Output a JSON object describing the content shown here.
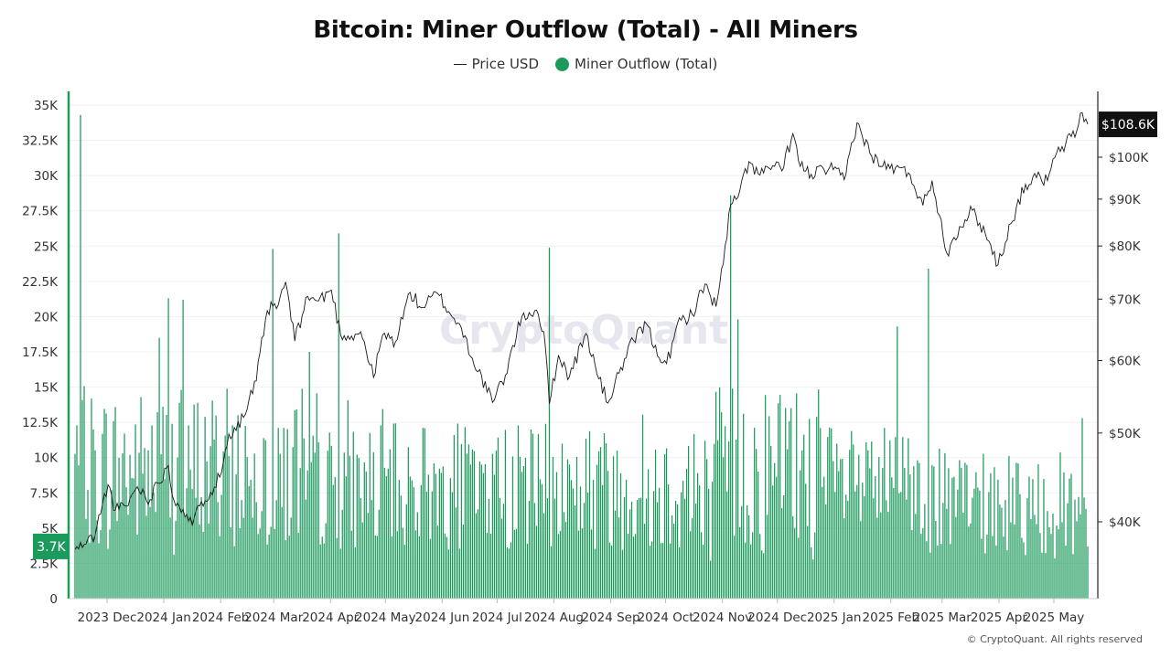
{
  "title": "Bitcoin: Miner Outflow (Total) - All Miners",
  "legend": {
    "price_label": "Price USD",
    "outflow_label": "Miner Outflow (Total)"
  },
  "watermark": "CryptoQuant",
  "footer": "© CryptoQuant. All rights reserved",
  "colors": {
    "outflow": "#1b9a5c",
    "price": "#1a1a1a",
    "badge_price_bg": "#111111",
    "badge_outflow_bg": "#1b9a5c"
  },
  "chart_data": {
    "type": "bar",
    "x_tick_labels": [
      "2023 Dec",
      "2024 Jan",
      "2024 Feb",
      "2024 Mar",
      "2024 Apr",
      "2024 May",
      "2024 Jun",
      "2024 Jul",
      "2024 Aug",
      "2024 Sep",
      "2024 Oct",
      "2024 Nov",
      "2024 Dec",
      "2025 Jan",
      "2025 Feb",
      "2025 Mar",
      "2025 Apr",
      "2025 May"
    ],
    "left_axis": {
      "label": "",
      "ylim": [
        0,
        35000
      ],
      "tick_values": [
        0,
        2500,
        5000,
        7500,
        10000,
        12500,
        15000,
        17500,
        20000,
        22500,
        25000,
        27500,
        30000,
        32500,
        35000
      ],
      "tick_labels": [
        "0",
        "2.5K",
        "5K",
        "7.5K",
        "10K",
        "12.5K",
        "15K",
        "17.5K",
        "20K",
        "22.5K",
        "25K",
        "27.5K",
        "30K",
        "32.5K",
        "35K"
      ]
    },
    "right_axis": {
      "scale": "log",
      "ylim": [
        33000,
        120000
      ],
      "tick_values": [
        40000,
        50000,
        60000,
        70000,
        80000,
        90000,
        100000
      ],
      "tick_labels": [
        "$40K",
        "$50K",
        "$60K",
        "$70K",
        "$80K",
        "$90K",
        "$100K"
      ]
    },
    "series": [
      {
        "name": "Miner Outflow (Total)",
        "kind": "bar",
        "axis": "left",
        "start_date": "2023-11-20",
        "interval": "daily",
        "spikes": [
          {
            "date": "2023-11-23",
            "value": 34300
          },
          {
            "date": "2024-01-10",
            "value": 21300
          },
          {
            "date": "2024-01-18",
            "value": 21200
          },
          {
            "date": "2024-01-05",
            "value": 18500
          },
          {
            "date": "2024-03-07",
            "value": 24800
          },
          {
            "date": "2024-04-12",
            "value": 25900
          },
          {
            "date": "2024-08-05",
            "value": 24900
          },
          {
            "date": "2024-11-12",
            "value": 28600
          },
          {
            "date": "2024-11-16",
            "value": 19800
          },
          {
            "date": "2025-02-28",
            "value": 23400
          },
          {
            "date": "2025-02-11",
            "value": 19300
          },
          {
            "date": "2025-05-23",
            "value": 12800
          }
        ],
        "last_value": 3700,
        "last_label": "3.7K"
      },
      {
        "name": "Price USD",
        "kind": "line",
        "axis": "right",
        "points": [
          [
            "2023-11-20",
            37300
          ],
          [
            "2023-11-25",
            37800
          ],
          [
            "2023-12-01",
            38700
          ],
          [
            "2023-12-05",
            41800
          ],
          [
            "2023-12-08",
            43900
          ],
          [
            "2023-12-12",
            41200
          ],
          [
            "2023-12-18",
            41600
          ],
          [
            "2023-12-24",
            43700
          ],
          [
            "2023-12-31",
            42300
          ],
          [
            "2024-01-04",
            44100
          ],
          [
            "2024-01-10",
            46100
          ],
          [
            "2024-01-12",
            42800
          ],
          [
            "2024-01-18",
            41300
          ],
          [
            "2024-01-23",
            39600
          ],
          [
            "2024-01-28",
            42100
          ],
          [
            "2024-02-02",
            43100
          ],
          [
            "2024-02-08",
            45300
          ],
          [
            "2024-02-12",
            49900
          ],
          [
            "2024-02-20",
            52000
          ],
          [
            "2024-02-27",
            57000
          ],
          [
            "2024-03-04",
            68000
          ],
          [
            "2024-03-10",
            69000
          ],
          [
            "2024-03-14",
            73100
          ],
          [
            "2024-03-19",
            63000
          ],
          [
            "2024-03-26",
            70500
          ],
          [
            "2024-04-01",
            69700
          ],
          [
            "2024-04-08",
            71600
          ],
          [
            "2024-04-13",
            64000
          ],
          [
            "2024-04-19",
            63800
          ],
          [
            "2024-04-24",
            64500
          ],
          [
            "2024-05-01",
            57500
          ],
          [
            "2024-05-06",
            64000
          ],
          [
            "2024-05-13",
            62900
          ],
          [
            "2024-05-21",
            71200
          ],
          [
            "2024-05-27",
            68500
          ],
          [
            "2024-06-05",
            71000
          ],
          [
            "2024-06-12",
            67400
          ],
          [
            "2024-06-18",
            65100
          ],
          [
            "2024-06-24",
            60300
          ],
          [
            "2024-07-05",
            54000
          ],
          [
            "2024-07-12",
            57800
          ],
          [
            "2024-07-21",
            67000
          ],
          [
            "2024-07-29",
            68100
          ],
          [
            "2024-08-02",
            64500
          ],
          [
            "2024-08-05",
            53800
          ],
          [
            "2024-08-10",
            60800
          ],
          [
            "2024-08-16",
            57600
          ],
          [
            "2024-08-25",
            64200
          ],
          [
            "2024-09-01",
            57300
          ],
          [
            "2024-09-06",
            53900
          ],
          [
            "2024-09-12",
            58100
          ],
          [
            "2024-09-20",
            63100
          ],
          [
            "2024-09-27",
            65800
          ],
          [
            "2024-10-03",
            60700
          ],
          [
            "2024-10-10",
            60300
          ],
          [
            "2024-10-14",
            65900
          ],
          [
            "2024-10-22",
            67400
          ],
          [
            "2024-10-29",
            72700
          ],
          [
            "2024-11-04",
            68700
          ],
          [
            "2024-11-08",
            76500
          ],
          [
            "2024-11-12",
            88700
          ],
          [
            "2024-11-16",
            90400
          ],
          [
            "2024-11-22",
            98900
          ],
          [
            "2024-11-28",
            95600
          ],
          [
            "2024-12-05",
            97900
          ],
          [
            "2024-12-10",
            96600
          ],
          [
            "2024-12-16",
            106100
          ],
          [
            "2024-12-20",
            97700
          ],
          [
            "2024-12-26",
            95800
          ],
          [
            "2025-01-02",
            96900
          ],
          [
            "2025-01-07",
            96900
          ],
          [
            "2025-01-13",
            94500
          ],
          [
            "2025-01-20",
            109000
          ],
          [
            "2025-01-27",
            101000
          ],
          [
            "2025-02-03",
            97700
          ],
          [
            "2025-02-10",
            97400
          ],
          [
            "2025-02-18",
            95700
          ],
          [
            "2025-02-25",
            88600
          ],
          [
            "2025-03-02",
            94300
          ],
          [
            "2025-03-10",
            78600
          ],
          [
            "2025-03-17",
            84000
          ],
          [
            "2025-03-24",
            87500
          ],
          [
            "2025-03-31",
            82600
          ],
          [
            "2025-04-07",
            76300
          ],
          [
            "2025-04-14",
            84600
          ],
          [
            "2025-04-22",
            93400
          ],
          [
            "2025-04-28",
            95000
          ],
          [
            "2025-05-04",
            94300
          ],
          [
            "2025-05-08",
            99900
          ],
          [
            "2025-05-14",
            103500
          ],
          [
            "2025-05-20",
            106800
          ],
          [
            "2025-05-22",
            111700
          ],
          [
            "2025-05-26",
            108600
          ]
        ],
        "last_value": 108600,
        "last_label": "$108.6K"
      }
    ],
    "grid": true,
    "legend_position": "top-center"
  }
}
